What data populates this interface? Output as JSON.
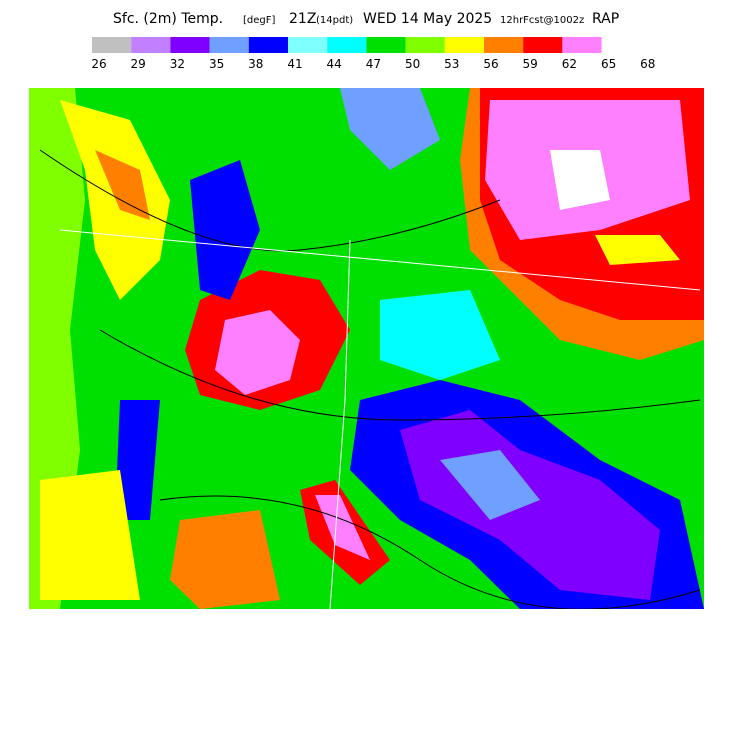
{
  "header": {
    "parts": [
      "Sfc. (2m) Temp.",
      "[degF]",
      "21Z",
      "(14pdt)",
      "WED 14 May 2025",
      "12hrFcst@1002z",
      "RAP"
    ]
  },
  "legend": {
    "colors": [
      "#c0c0c0",
      "#c080ff",
      "#8000ff",
      "#6f9fff",
      "#0000ff",
      "#80ffff",
      "#00ffff",
      "#00e000",
      "#80ff00",
      "#ffff00",
      "#ff8000",
      "#ff0000",
      "#ff80ff"
    ],
    "labels": [
      26,
      29,
      32,
      35,
      38,
      41,
      44,
      47,
      50,
      53,
      56,
      59,
      62,
      65,
      68
    ]
  }
}
